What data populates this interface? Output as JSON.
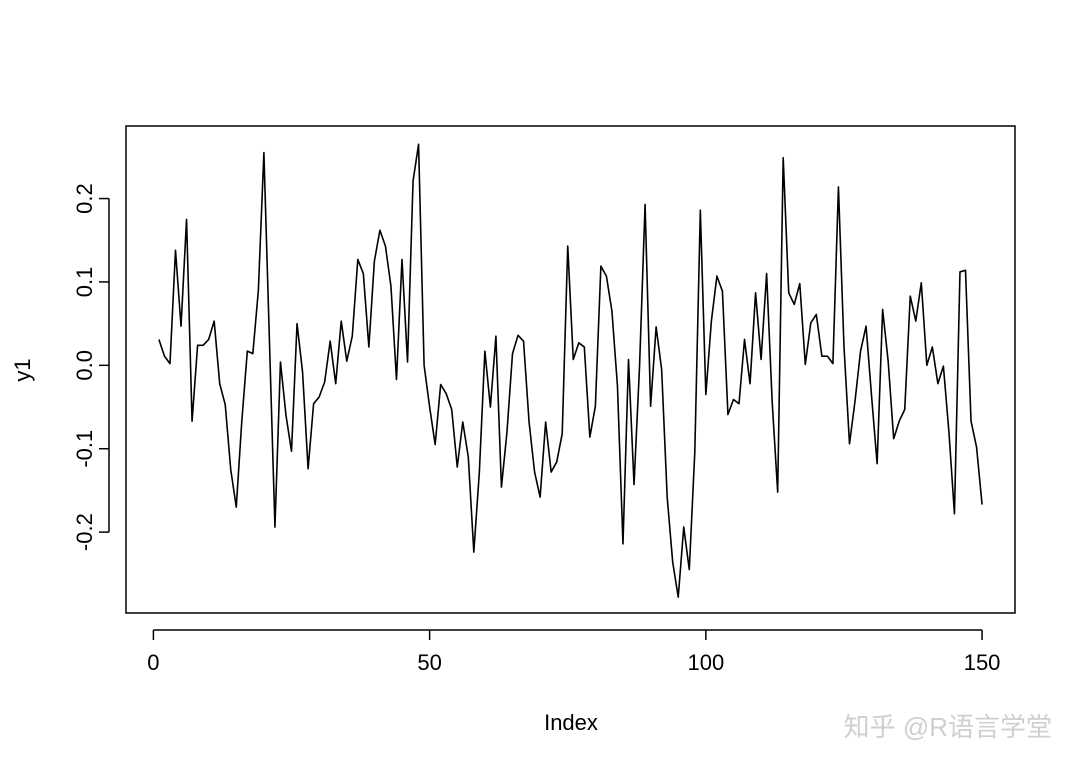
{
  "chart_data": {
    "type": "line",
    "x_label": "Index",
    "y_label": "y1",
    "watermark": "知乎 @R语言学堂",
    "color": "#000000",
    "x": [
      1,
      2,
      3,
      4,
      5,
      6,
      7,
      8,
      9,
      10,
      11,
      12,
      13,
      14,
      15,
      16,
      17,
      18,
      19,
      20,
      21,
      22,
      23,
      24,
      25,
      26,
      27,
      28,
      29,
      30,
      31,
      32,
      33,
      34,
      35,
      36,
      37,
      38,
      39,
      40,
      41,
      42,
      43,
      44,
      45,
      46,
      47,
      48,
      49,
      50,
      51,
      52,
      53,
      54,
      55,
      56,
      57,
      58,
      59,
      60,
      61,
      62,
      63,
      64,
      65,
      66,
      67,
      68,
      69,
      70,
      71,
      72,
      73,
      74,
      75,
      76,
      77,
      78,
      79,
      80,
      81,
      82,
      83,
      84,
      85,
      86,
      87,
      88,
      89,
      90,
      91,
      92,
      93,
      94,
      95,
      96,
      97,
      98,
      99,
      100,
      101,
      102,
      103,
      104,
      105,
      106,
      107,
      108,
      109,
      110,
      111,
      112,
      113,
      114,
      115,
      116,
      117,
      118,
      119,
      120,
      121,
      122,
      123,
      124,
      125,
      126,
      127,
      128,
      129,
      130,
      131,
      132,
      133,
      134,
      135,
      136,
      137,
      138,
      139,
      140,
      141,
      142,
      143,
      144,
      145,
      146,
      147,
      148,
      149,
      150
    ],
    "values": [
      0.031,
      0.011,
      0.002,
      0.138,
      0.047,
      0.175,
      -0.067,
      0.024,
      0.024,
      0.031,
      0.053,
      -0.022,
      -0.047,
      -0.125,
      -0.17,
      -0.067,
      0.017,
      0.014,
      0.09,
      0.255,
      0.03,
      -0.194,
      0.004,
      -0.06,
      -0.103,
      0.05,
      -0.008,
      -0.124,
      -0.046,
      -0.038,
      -0.02,
      0.029,
      -0.022,
      0.053,
      0.005,
      0.035,
      0.127,
      0.11,
      0.022,
      0.125,
      0.162,
      0.143,
      0.095,
      -0.017,
      0.127,
      0.004,
      0.221,
      0.265,
      0.0,
      -0.05,
      -0.095,
      -0.023,
      -0.034,
      -0.053,
      -0.122,
      -0.068,
      -0.11,
      -0.224,
      -0.128,
      0.017,
      -0.05,
      0.035,
      -0.146,
      -0.08,
      0.014,
      0.036,
      0.029,
      -0.068,
      -0.128,
      -0.158,
      -0.068,
      -0.128,
      -0.116,
      -0.082,
      0.143,
      0.007,
      0.027,
      0.022,
      -0.086,
      -0.049,
      0.119,
      0.107,
      0.065,
      -0.025,
      -0.214,
      0.007,
      -0.143,
      -0.001,
      0.193,
      -0.049,
      0.046,
      -0.005,
      -0.158,
      -0.236,
      -0.278,
      -0.194,
      -0.245,
      -0.104,
      0.186,
      -0.035,
      0.053,
      0.107,
      0.089,
      -0.059,
      -0.041,
      -0.046,
      0.031,
      -0.022,
      0.087,
      0.007,
      0.11,
      -0.043,
      -0.152,
      0.249,
      0.087,
      0.073,
      0.098,
      0.001,
      0.051,
      0.061,
      0.011,
      0.011,
      0.002,
      0.214,
      0.023,
      -0.094,
      -0.043,
      0.017,
      0.047,
      -0.037,
      -0.118,
      0.067,
      0.005,
      -0.088,
      -0.067,
      -0.053,
      0.083,
      0.053,
      0.099,
      0.0,
      0.022,
      -0.022,
      -0.001,
      -0.08,
      -0.178,
      0.112,
      0.114,
      -0.067,
      -0.098,
      -0.167
    ],
    "xlim": [
      -4.96,
      155.96
    ],
    "ylim": [
      -0.297,
      0.287
    ],
    "xticks": [
      0,
      50,
      100,
      150
    ],
    "yticks": [
      -0.2,
      -0.1,
      {
        "value": 0,
        "label": "0.0"
      },
      0.1,
      0.2
    ]
  }
}
